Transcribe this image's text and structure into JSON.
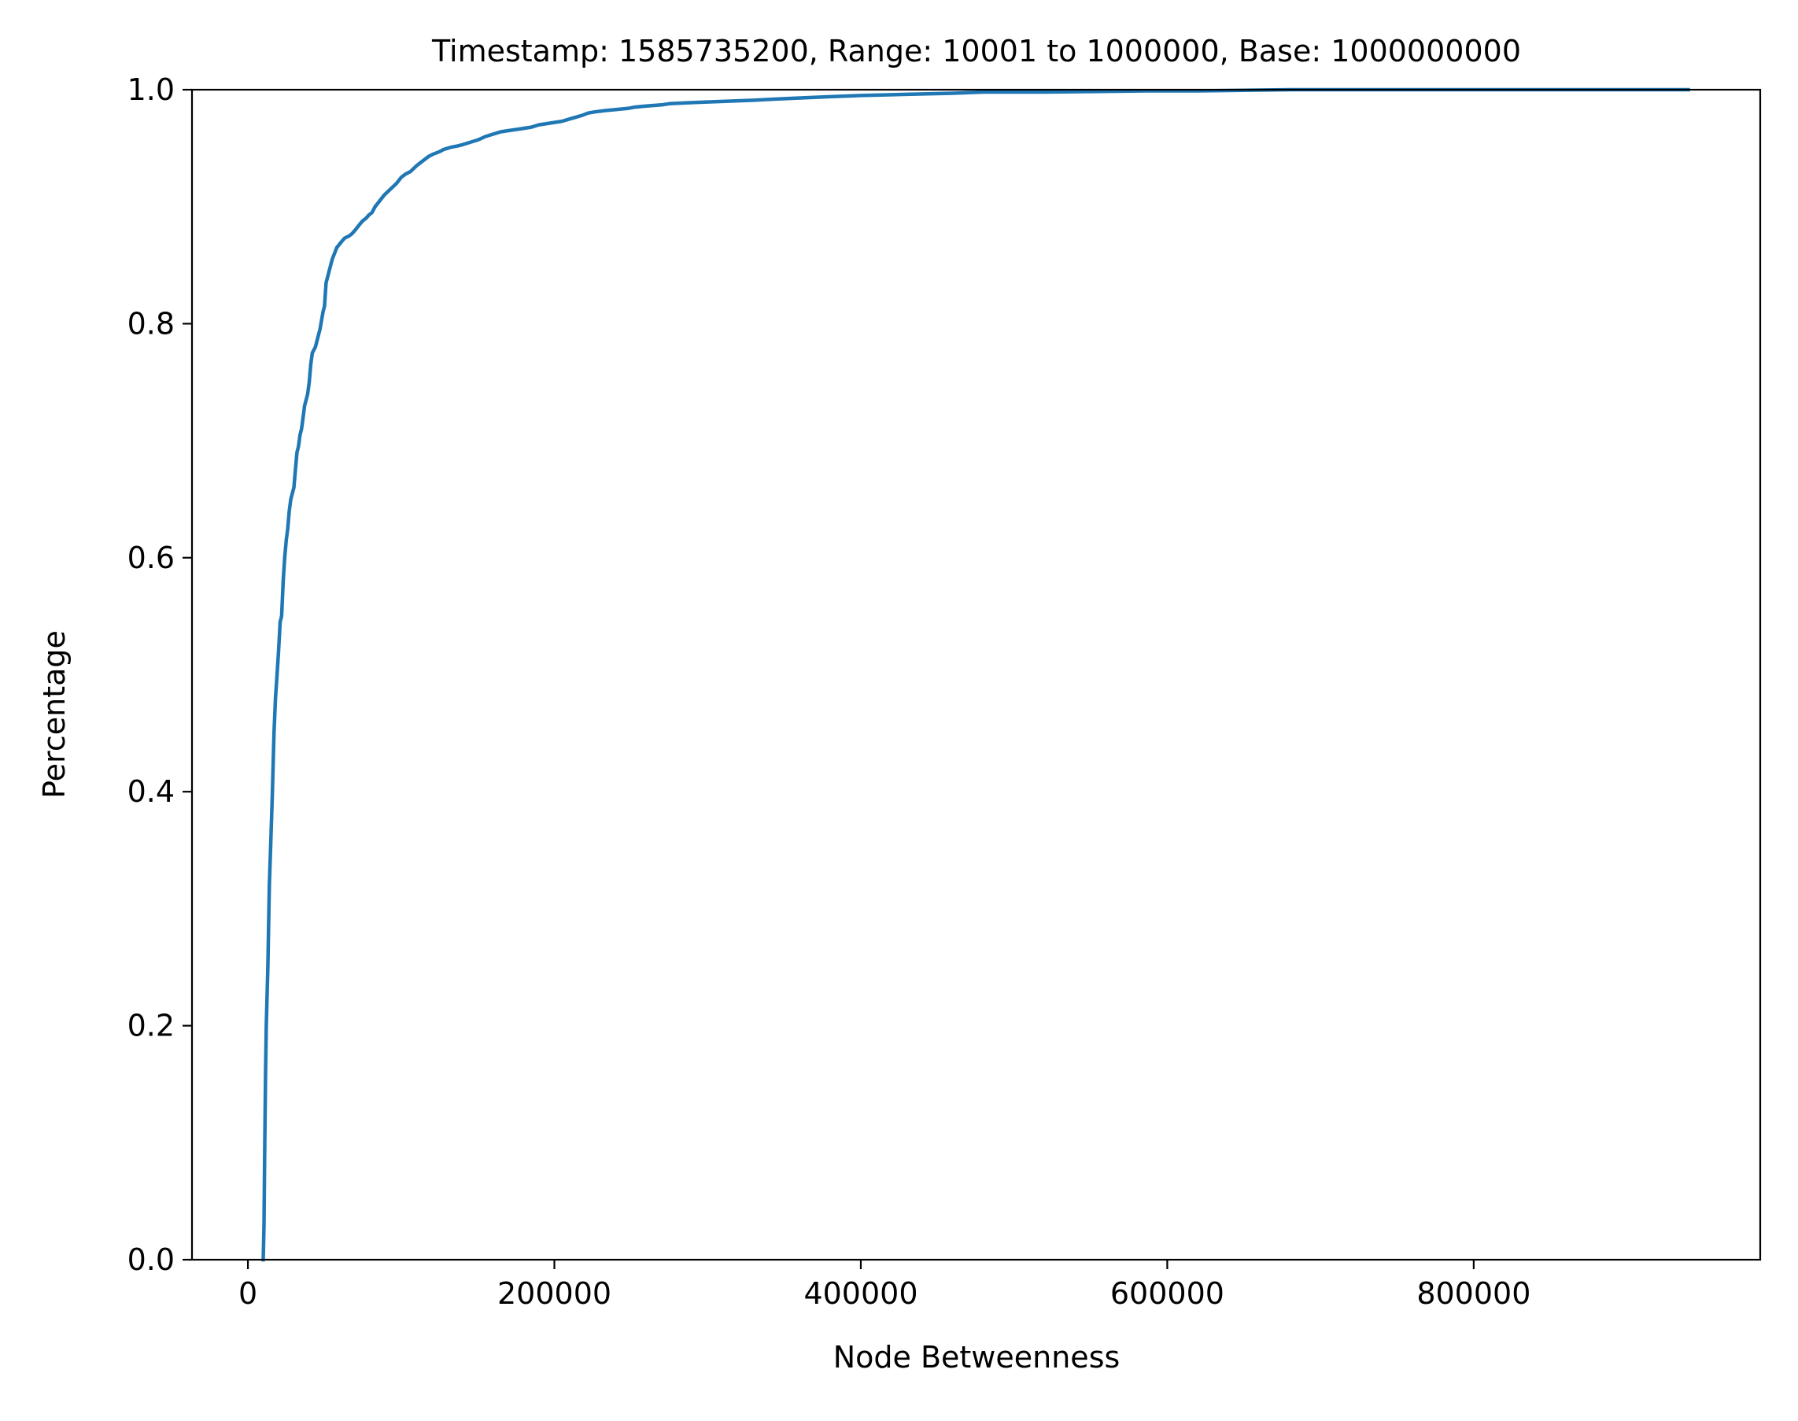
{
  "chart_data": {
    "type": "line",
    "title": "Timestamp: 1585735200, Range: 10001 to 1000000, Base: 1000000000",
    "xlabel": "Node Betweenness",
    "ylabel": "Percentage",
    "xlim": [
      -36500,
      987000
    ],
    "ylim": [
      0,
      1.0
    ],
    "xticks": [
      0,
      200000,
      400000,
      600000,
      800000
    ],
    "xtick_labels": [
      "0",
      "200000",
      "400000",
      "600000",
      "800000"
    ],
    "yticks": [
      0.0,
      0.2,
      0.4,
      0.6,
      0.8,
      1.0
    ],
    "ytick_labels": [
      "0.0",
      "0.2",
      "0.4",
      "0.6",
      "0.8",
      "1.0"
    ],
    "grid": false,
    "legend": null,
    "line_color": "#1f77b4",
    "series": [
      {
        "x": [
          10000,
          10500,
          11000,
          11500,
          12000,
          13000,
          14000,
          15000,
          16000,
          17000,
          18000,
          19000,
          20000,
          21000,
          22000,
          23000,
          24000,
          25000,
          26000,
          27000,
          28000,
          30000,
          31000,
          32000,
          33000,
          34000,
          35000,
          36000,
          37000,
          38000,
          39000,
          40000,
          41000,
          42000,
          44000,
          45000,
          46000,
          47000,
          49000,
          50000,
          51000,
          53000,
          55000,
          58000,
          61000,
          63000,
          66000,
          68000,
          70000,
          73000,
          75000,
          77000,
          79000,
          81000,
          83000,
          86000,
          89000,
          93000,
          97000,
          100000,
          103000,
          106000,
          110000,
          113000,
          115000,
          118000,
          121000,
          125000,
          128000,
          133000,
          137000,
          140000,
          145000,
          150000,
          155000,
          160000,
          165000,
          170000,
          175000,
          180000,
          185000,
          190000,
          195000,
          200000,
          205000,
          210000,
          218000,
          222000,
          226000,
          232000,
          240000,
          248000,
          252000,
          260000,
          270000,
          275000,
          290000,
          310000,
          330000,
          345000,
          362000,
          380000,
          400000,
          430000,
          460000,
          480000,
          520000,
          587000,
          590000,
          620000,
          680000,
          730000,
          765000,
          785000,
          800000,
          940000
        ],
        "y": [
          0.0,
          0.03,
          0.1,
          0.16,
          0.2,
          0.25,
          0.32,
          0.36,
          0.4,
          0.45,
          0.48,
          0.5,
          0.52,
          0.545,
          0.55,
          0.58,
          0.6,
          0.615,
          0.625,
          0.64,
          0.65,
          0.66,
          0.675,
          0.69,
          0.695,
          0.705,
          0.71,
          0.72,
          0.73,
          0.735,
          0.74,
          0.75,
          0.765,
          0.775,
          0.78,
          0.785,
          0.79,
          0.795,
          0.81,
          0.815,
          0.835,
          0.845,
          0.855,
          0.865,
          0.87,
          0.873,
          0.875,
          0.877,
          0.88,
          0.885,
          0.888,
          0.89,
          0.893,
          0.895,
          0.9,
          0.905,
          0.91,
          0.915,
          0.92,
          0.925,
          0.928,
          0.93,
          0.935,
          0.938,
          0.94,
          0.943,
          0.945,
          0.947,
          0.949,
          0.951,
          0.952,
          0.953,
          0.955,
          0.957,
          0.96,
          0.962,
          0.964,
          0.965,
          0.966,
          0.967,
          0.968,
          0.97,
          0.971,
          0.972,
          0.973,
          0.975,
          0.978,
          0.98,
          0.981,
          0.982,
          0.983,
          0.984,
          0.985,
          0.986,
          0.987,
          0.988,
          0.989,
          0.99,
          0.991,
          0.992,
          0.993,
          0.994,
          0.995,
          0.996,
          0.997,
          0.998,
          0.998,
          0.999,
          0.999,
          0.999,
          1.0,
          1.0,
          1.0,
          1.0,
          1.0,
          1.0
        ]
      }
    ]
  }
}
